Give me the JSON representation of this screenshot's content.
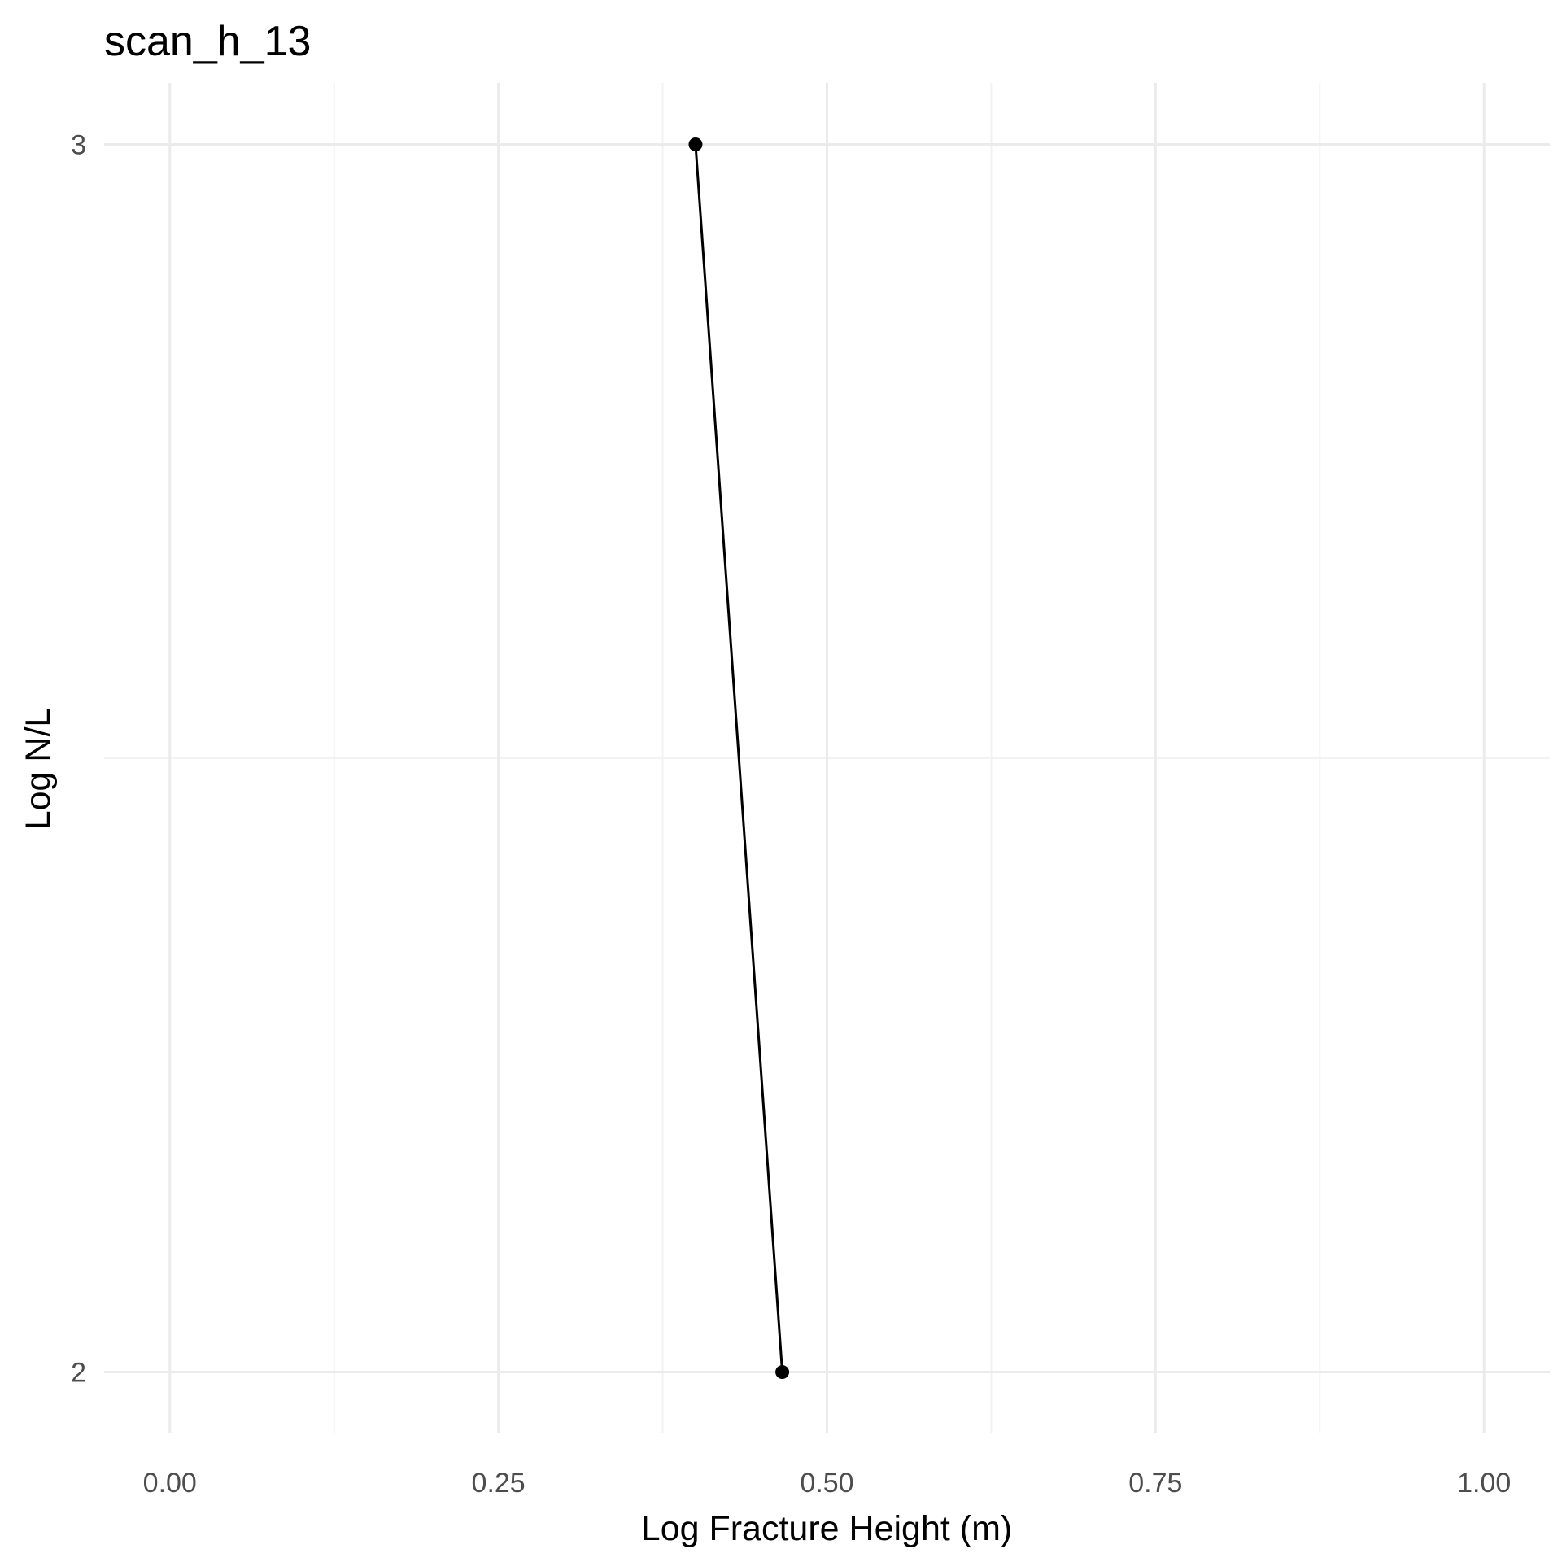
{
  "chart_data": {
    "type": "line",
    "title": "scan_h_13",
    "xlabel": "Log Fracture Height (m)",
    "ylabel": "Log N/L",
    "xlim": [
      -0.05,
      1.05
    ],
    "ylim": [
      1.95,
      3.05
    ],
    "x_ticks": [
      0.0,
      0.25,
      0.5,
      0.75,
      1.0
    ],
    "x_tick_labels": [
      "0.00",
      "0.25",
      "0.50",
      "0.75",
      "1.00"
    ],
    "y_ticks": [
      2,
      3
    ],
    "y_tick_labels": [
      "2",
      "3"
    ],
    "grid": true,
    "legend": "none",
    "series": [
      {
        "color": "#000000",
        "points": [
          {
            "x": 0.4,
            "y": 3.0
          },
          {
            "x": 0.466,
            "y": 2.0
          }
        ]
      }
    ]
  }
}
